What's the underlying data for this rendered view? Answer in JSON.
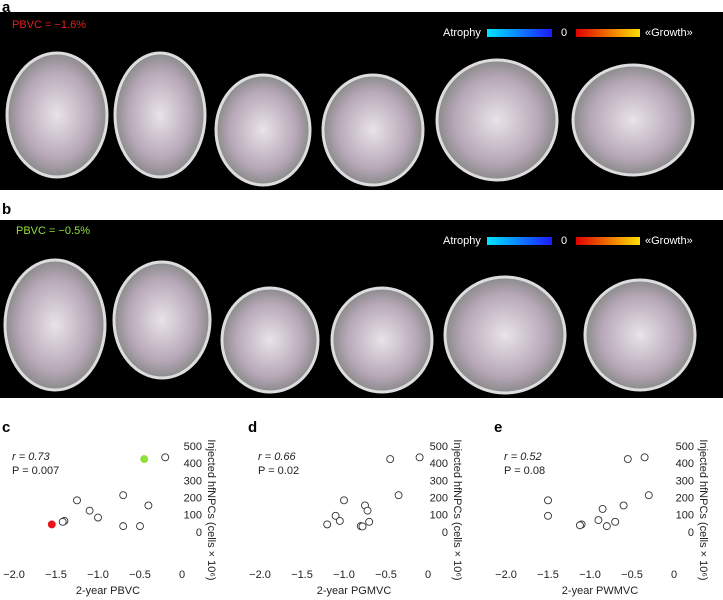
{
  "panel_a": {
    "letter": "a",
    "label": "PBVC = −1.6%",
    "atrophy": "Atrophy",
    "zero": "0",
    "growth": "«Growth»"
  },
  "panel_b": {
    "letter": "b",
    "label": "PBVC = −0.5%",
    "atrophy": "Atrophy",
    "zero": "0",
    "growth": "«Growth»"
  },
  "chart_data": [
    {
      "type": "scatter",
      "letter": "c",
      "annotation_r": "r = 0.73",
      "annotation_p": "P = 0.007",
      "x_label": "2-year PBVC",
      "y_label": "Injected hfNPCs (cells × 10⁶)",
      "x": [
        -0.45,
        -0.2,
        -1.25,
        -1.1,
        -1.0,
        -0.7,
        -0.4,
        -1.4,
        -1.42,
        -1.55,
        -0.7,
        -0.5
      ],
      "y": [
        430,
        440,
        190,
        130,
        90,
        220,
        160,
        70,
        65,
        50,
        40,
        40
      ],
      "fills": [
        "#8fe03a",
        "none",
        "none",
        "none",
        "none",
        "none",
        "none",
        "none",
        "none",
        "#e8141a",
        "none",
        "none"
      ],
      "xlim": [
        -2.0,
        0
      ],
      "xticks": [
        {
          "value": -2.0,
          "label": "−2.0"
        },
        {
          "value": -1.5,
          "label": "−1.5"
        },
        {
          "value": -1.0,
          "label": "−1.0"
        },
        {
          "value": -0.5,
          "label": "−0.5"
        },
        0
      ],
      "ylim": [
        0,
        500
      ],
      "yticks": [
        0,
        100,
        200,
        300,
        400,
        500
      ]
    },
    {
      "type": "scatter",
      "letter": "d",
      "annotation_r": "r = 0.66",
      "annotation_p": "P = 0.02",
      "x_label": "2-year PGMVC",
      "y_label": "Injected hfNPCs (cells × 10⁶)",
      "x": [
        -0.45,
        -0.1,
        -0.35,
        -1.0,
        -0.75,
        -0.72,
        -1.1,
        -1.05,
        -0.7,
        -1.2,
        -0.8,
        -0.78
      ],
      "y": [
        430,
        440,
        220,
        190,
        160,
        130,
        100,
        70,
        65,
        50,
        40,
        38
      ],
      "fills": [
        "none",
        "none",
        "none",
        "none",
        "none",
        "none",
        "none",
        "none",
        "none",
        "none",
        "none",
        "none"
      ],
      "xlim": [
        -2.0,
        0
      ],
      "xticks": [
        {
          "value": -2.0,
          "label": "−2.0"
        },
        {
          "value": -1.5,
          "label": "−1.5"
        },
        {
          "value": -1.0,
          "label": "−1.0"
        },
        {
          "value": -0.5,
          "label": "−0.5"
        },
        0
      ],
      "ylim": [
        0,
        500
      ],
      "yticks": [
        0,
        100,
        200,
        300,
        400,
        500
      ]
    },
    {
      "type": "scatter",
      "letter": "e",
      "annotation_r": "r = 0.52",
      "annotation_p": "P = 0.08",
      "x_label": "2-year PWMVC",
      "y_label": "Injected hfNPCs (cells × 10⁶)",
      "x": [
        -0.55,
        -0.35,
        -0.3,
        -1.5,
        -1.5,
        -0.6,
        -0.85,
        -0.9,
        -0.7,
        -1.1,
        -1.12,
        -0.8
      ],
      "y": [
        430,
        440,
        220,
        190,
        100,
        160,
        140,
        75,
        65,
        50,
        45,
        40
      ],
      "fills": [
        "none",
        "none",
        "none",
        "none",
        "none",
        "none",
        "none",
        "none",
        "none",
        "none",
        "none",
        "none"
      ],
      "xlim": [
        -2.0,
        0
      ],
      "xticks": [
        {
          "value": -2.0,
          "label": "−2.0"
        },
        {
          "value": -1.5,
          "label": "−1.5"
        },
        {
          "value": -1.0,
          "label": "−1.0"
        },
        {
          "value": -0.5,
          "label": "−0.5"
        },
        0
      ],
      "ylim": [
        0,
        500
      ],
      "yticks": [
        0,
        100,
        200,
        300,
        400,
        500
      ]
    }
  ]
}
